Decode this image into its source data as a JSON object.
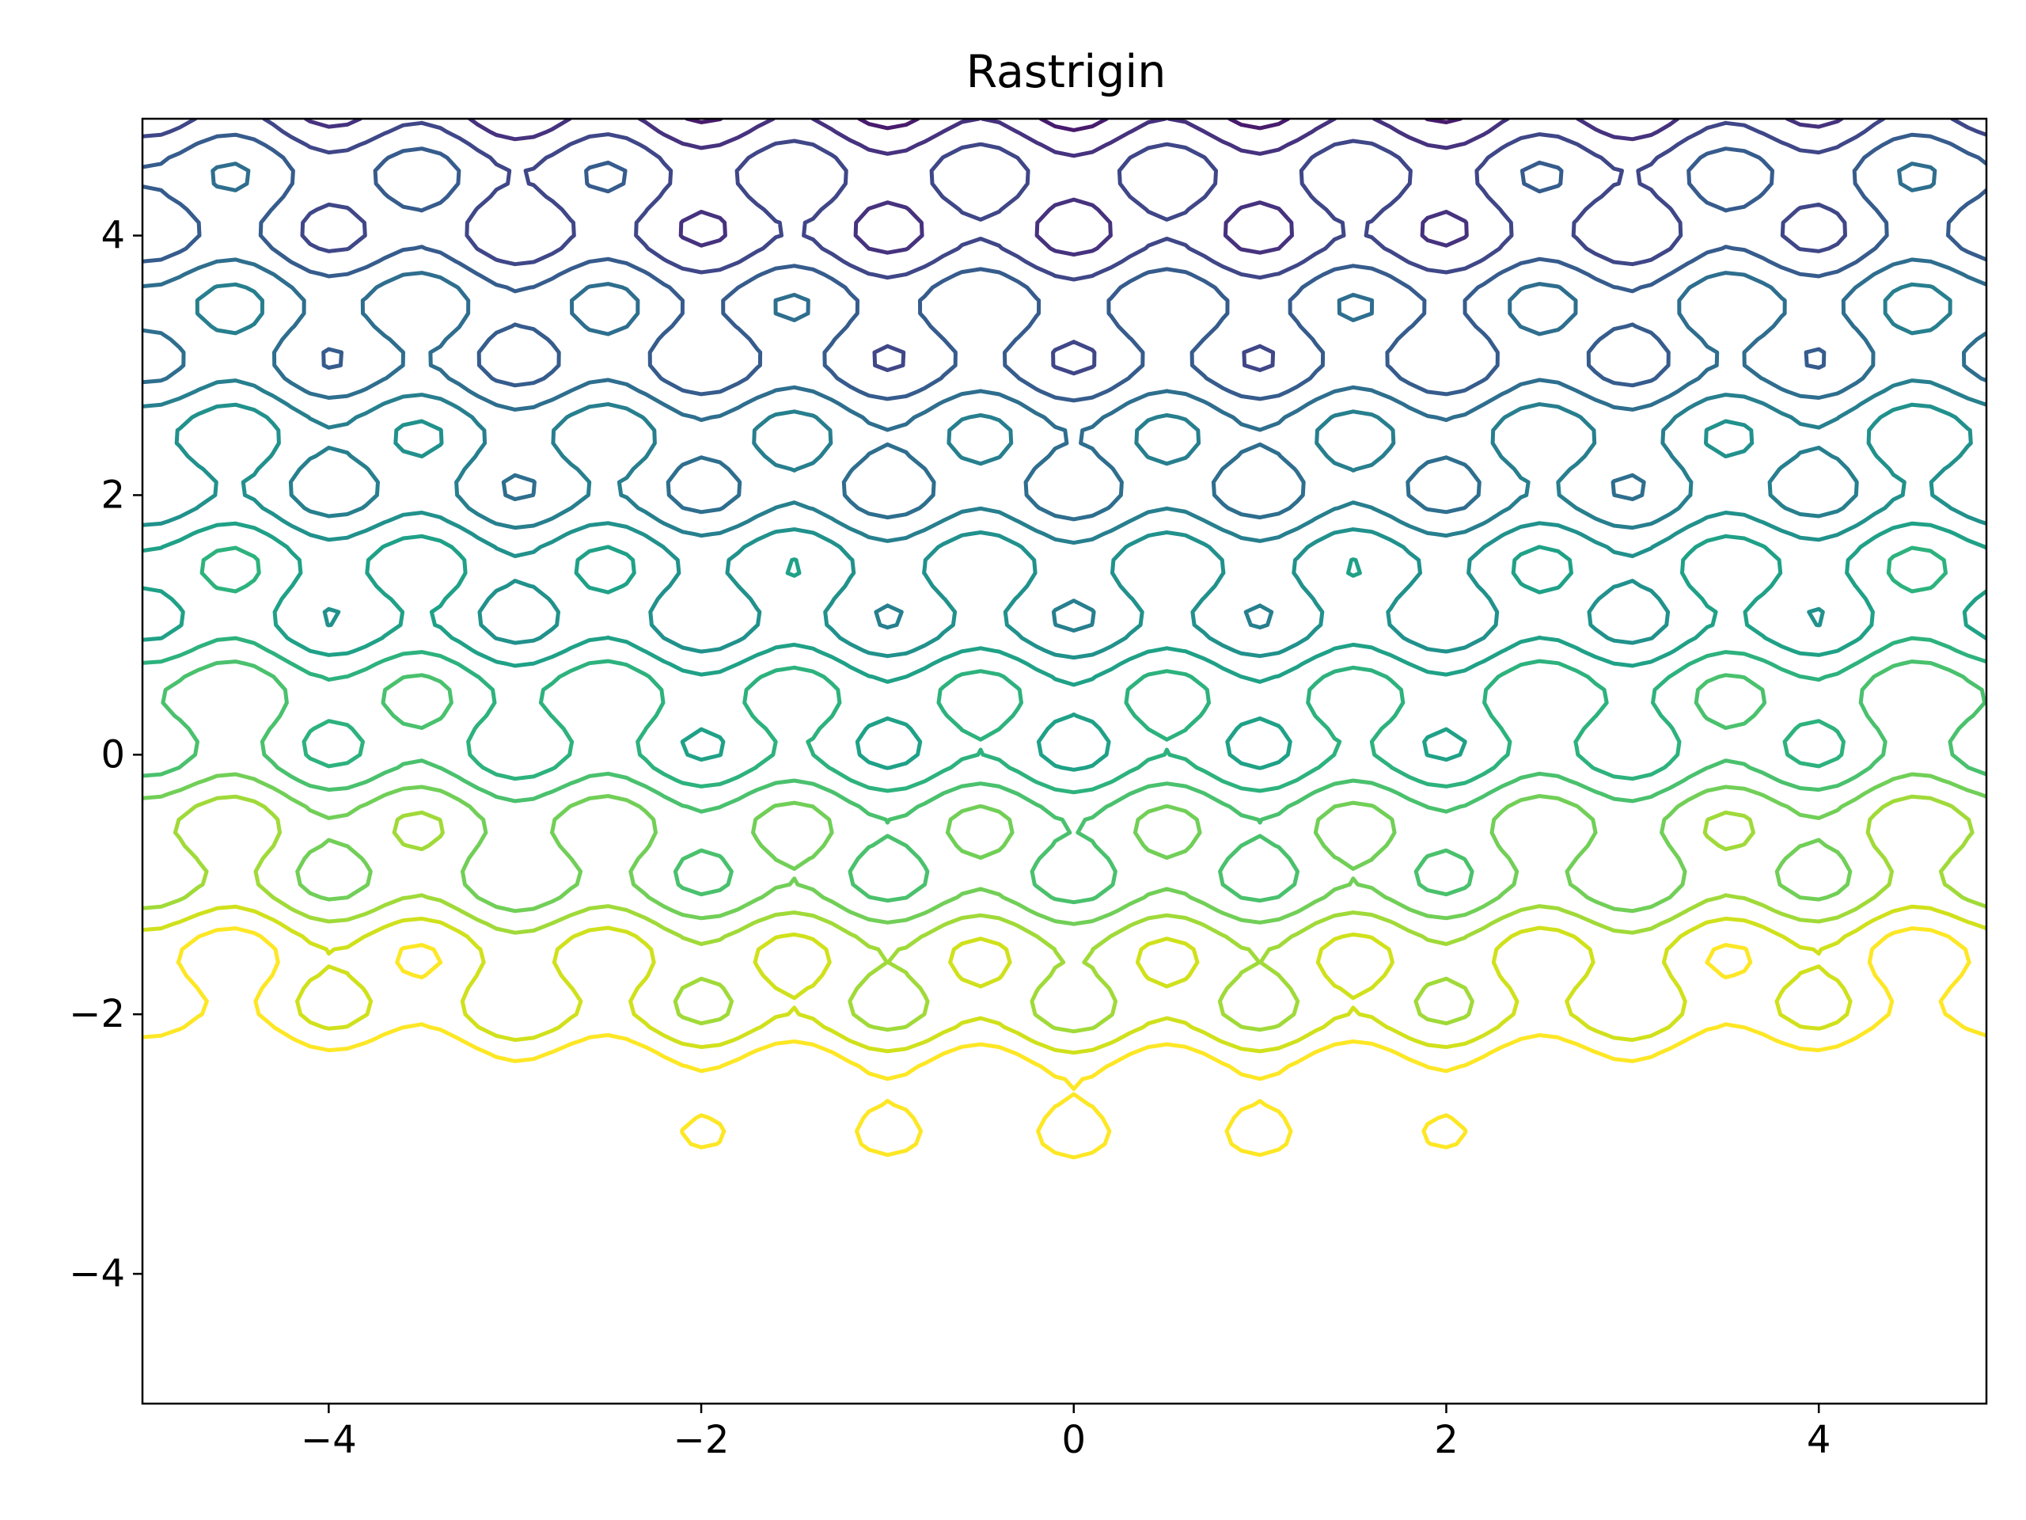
{
  "chart_data": {
    "type": "contour",
    "title": "Rastrigin",
    "xlabel": "",
    "ylabel": "",
    "xlim": [
      -5,
      4.9
    ],
    "ylim": [
      -5,
      4.9
    ],
    "grid": false,
    "legend": "none",
    "x_ticks": [
      -4,
      -2,
      0,
      2,
      4
    ],
    "y_ticks": [
      -4,
      -2,
      0,
      2,
      4
    ],
    "x_tick_labels": [
      "−4",
      "−2",
      "0",
      "2",
      "4"
    ],
    "y_tick_labels": [
      "−4",
      "−2",
      "0",
      "2",
      "4"
    ],
    "function": "f(x,y) = 20 + x^2 - 10cos(2πx) + y^2 - 10cos(2πy) (Rastrigin, rendered with a strong y-dependent skew as in the original)",
    "colormap": "viridis",
    "levels": [
      5,
      10,
      15,
      20,
      25,
      30,
      35,
      40,
      45,
      50,
      55,
      60,
      65,
      70,
      75
    ],
    "level_colors": [
      "#440154",
      "#481b6d",
      "#46327e",
      "#3f4788",
      "#365c8d",
      "#2e6e8e",
      "#277f8e",
      "#21918c",
      "#1fa187",
      "#2db27d",
      "#4ac16d",
      "#71cf57",
      "#a0da39",
      "#d0e11c",
      "#fde725"
    ],
    "grid_step": 0.1
  }
}
